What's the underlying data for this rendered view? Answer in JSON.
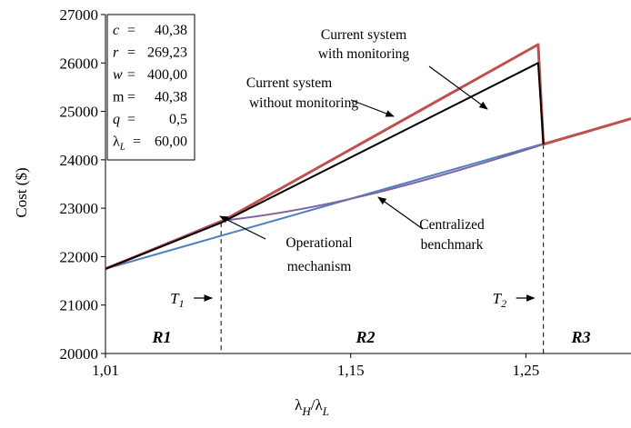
{
  "chart_data": {
    "type": "line",
    "xlabel": "λH/λL",
    "ylabel": "Cost ($)",
    "xlim": [
      1.01,
      1.31
    ],
    "ylim": [
      20000,
      27000
    ],
    "x_ticks": [
      "1,01",
      "1,15",
      "1,25"
    ],
    "y_ticks": [
      "20000",
      "21000",
      "22000",
      "23000",
      "24000",
      "25000",
      "26000",
      "27000"
    ],
    "grid": false,
    "series": [
      {
        "name": "Current system with monitoring",
        "color": "#c0504d",
        "x": [
          1.01,
          1.076,
          1.257,
          1.26,
          1.31
        ],
        "y": [
          21750,
          22720,
          26380,
          24320,
          24850
        ]
      },
      {
        "name": "Current system without monitoring",
        "color": "#000000",
        "x": [
          1.01,
          1.076,
          1.257,
          1.26
        ],
        "y": [
          21750,
          22700,
          26000,
          24320
        ]
      },
      {
        "name": "Operational mechanism",
        "color": "#8064a2",
        "x": [
          1.01,
          1.076,
          1.1,
          1.13,
          1.16,
          1.2,
          1.26,
          1.31
        ],
        "y": [
          21750,
          22740,
          22880,
          23080,
          23350,
          23760,
          24320,
          24850
        ]
      },
      {
        "name": "Centralized benchmark",
        "color": "#4f81bd",
        "x": [
          1.01,
          1.31
        ],
        "y": [
          21750,
          24850
        ]
      }
    ],
    "annotations": [
      "Current system",
      "with monitoring",
      "Current system",
      "without monitoring",
      "Centralized",
      "benchmark",
      "Operational",
      "mechanism"
    ],
    "thresholds": [
      {
        "label": "T1",
        "x": 1.076
      },
      {
        "label": "T2",
        "x": 1.26
      }
    ],
    "regions": [
      "R1",
      "R2",
      "R3"
    ],
    "parameters": [
      {
        "name": "c",
        "value": "40,38"
      },
      {
        "name": "r",
        "value": "269,23"
      },
      {
        "name": "w",
        "value": "400,00"
      },
      {
        "name": "m",
        "value": "40,38"
      },
      {
        "name": "q",
        "value": "0,5"
      },
      {
        "name": "λL",
        "value": "60,00"
      }
    ]
  }
}
